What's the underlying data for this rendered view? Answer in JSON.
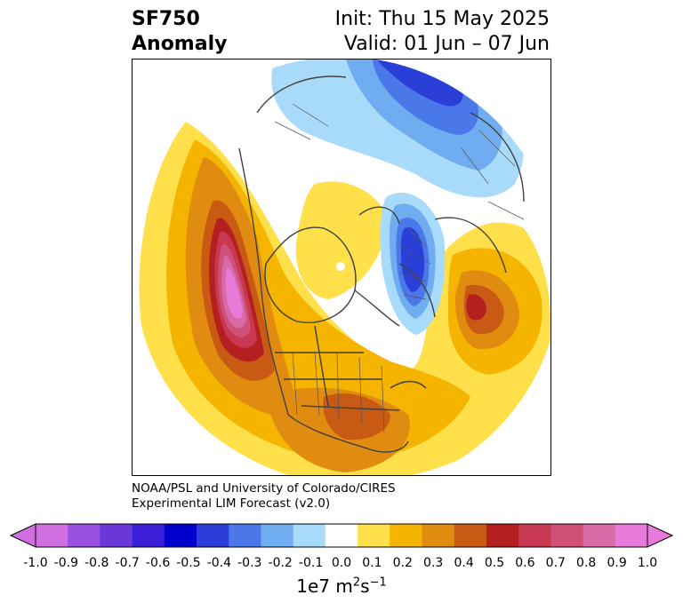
{
  "header": {
    "variable": "SF750",
    "kind": "Anomaly",
    "init": "Init: Thu 15 May 2025",
    "valid": "Valid: 01 Jun – 07 Jun"
  },
  "credit": {
    "line1": "NOAA/PSL and University of Colorado/CIRES",
    "line2": "Experimental LIM Forecast (v2.0)"
  },
  "colorbar": {
    "ticks": [
      "-1.0",
      "-0.9",
      "-0.8",
      "-0.7",
      "-0.6",
      "-0.5",
      "-0.4",
      "-0.3",
      "-0.2",
      "-0.1",
      "0.0",
      "0.1",
      "0.2",
      "0.3",
      "0.4",
      "0.5",
      "0.6",
      "0.7",
      "0.8",
      "0.9",
      "1.0"
    ],
    "colors": [
      "#d070e0",
      "#9a50e0",
      "#6a38d8",
      "#3a1ed8",
      "#0000cc",
      "#2a3fd8",
      "#4a78e8",
      "#70acf0",
      "#a8dbfa",
      "#ffffff",
      "#ffe04a",
      "#f4b400",
      "#e08c10",
      "#c85a14",
      "#b42020",
      "#c83850",
      "#d05078",
      "#d86aa8",
      "#e87ada"
    ],
    "units_base": "1e7 m",
    "units_exp1": "2",
    "units_mid": "s",
    "units_exp2": "−1"
  }
}
